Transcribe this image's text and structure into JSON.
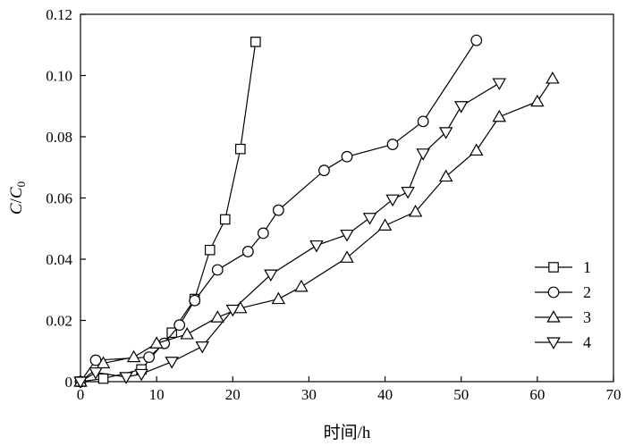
{
  "chart_data": {
    "type": "line",
    "xlabel": "时间/h",
    "ylabel_main": "C",
    "ylabel_sep": "/",
    "ylabel_den": "C",
    "ylabel_sub": "0",
    "xlim": [
      0,
      70
    ],
    "ylim": [
      0,
      0.12
    ],
    "xticks": [
      0,
      10,
      20,
      30,
      40,
      50,
      60,
      70
    ],
    "yticks": [
      0,
      0.02,
      0.04,
      0.06,
      0.08,
      0.1,
      0.12
    ],
    "ytick_labels": [
      "0",
      "0.02",
      "0.04",
      "0.06",
      "0.08",
      "0.10",
      "0.12"
    ],
    "grid": false,
    "legend_position": "bottom-right",
    "series": [
      {
        "name": "1",
        "marker": "square",
        "x": [
          0,
          3,
          8,
          12,
          15,
          17,
          19,
          21,
          23
        ],
        "y": [
          0,
          0.001,
          0.004,
          0.016,
          0.027,
          0.043,
          0.053,
          0.076,
          0.111
        ]
      },
      {
        "name": "2",
        "marker": "circle",
        "x": [
          0,
          2,
          9,
          11,
          13,
          15,
          18,
          22,
          24,
          26,
          32,
          35,
          41,
          45,
          52
        ],
        "y": [
          0,
          0.007,
          0.008,
          0.0125,
          0.0185,
          0.0265,
          0.0365,
          0.0425,
          0.0485,
          0.056,
          0.069,
          0.0735,
          0.0775,
          0.085,
          0.1115
        ]
      },
      {
        "name": "3",
        "marker": "triangle-up",
        "x": [
          0,
          3,
          7,
          10,
          14,
          18,
          21,
          26,
          29,
          35,
          40,
          44,
          48,
          52,
          55,
          60,
          62
        ],
        "y": [
          0,
          0.006,
          0.008,
          0.0125,
          0.0155,
          0.021,
          0.024,
          0.027,
          0.031,
          0.0405,
          0.051,
          0.0555,
          0.067,
          0.0755,
          0.0865,
          0.0915,
          0.099
        ]
      },
      {
        "name": "4",
        "marker": "triangle-down",
        "x": [
          0,
          2,
          6,
          8,
          12,
          16,
          20,
          25,
          31,
          35,
          38,
          41,
          43,
          45,
          48,
          50,
          55
        ],
        "y": [
          0,
          0.003,
          0.0015,
          0.0025,
          0.0065,
          0.0115,
          0.0235,
          0.035,
          0.0445,
          0.048,
          0.0535,
          0.0595,
          0.062,
          0.0745,
          0.0815,
          0.09,
          0.0975
        ]
      }
    ]
  }
}
